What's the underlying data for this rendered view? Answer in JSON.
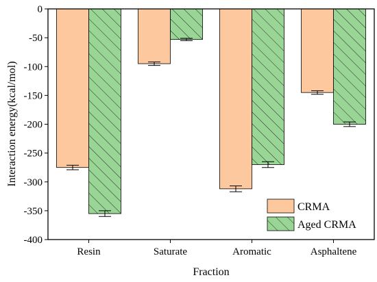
{
  "chart_data": {
    "type": "bar",
    "title": "",
    "xlabel": "Fraction",
    "ylabel": "Interaction energy(kcal/mol)",
    "categories": [
      "Resin",
      "Saturate",
      "Aromatic",
      "Asphaltene"
    ],
    "ylim": [
      -400,
      0
    ],
    "yticks": [
      0,
      -50,
      -100,
      -150,
      -200,
      -250,
      -300,
      -350,
      -400
    ],
    "grid": false,
    "legend_position": "bottom-right",
    "series": [
      {
        "name": "CRMA",
        "values": [
          -275,
          -95,
          -312,
          -145
        ],
        "errors": [
          4,
          3,
          5,
          3
        ],
        "color": "#fdc89e",
        "pattern": "none"
      },
      {
        "name": "Aged CRMA",
        "values": [
          -355,
          -53,
          -270,
          -200
        ],
        "errors": [
          5,
          2,
          5,
          4
        ],
        "color": "#99d595",
        "pattern": "diagonal-hatch"
      }
    ]
  }
}
